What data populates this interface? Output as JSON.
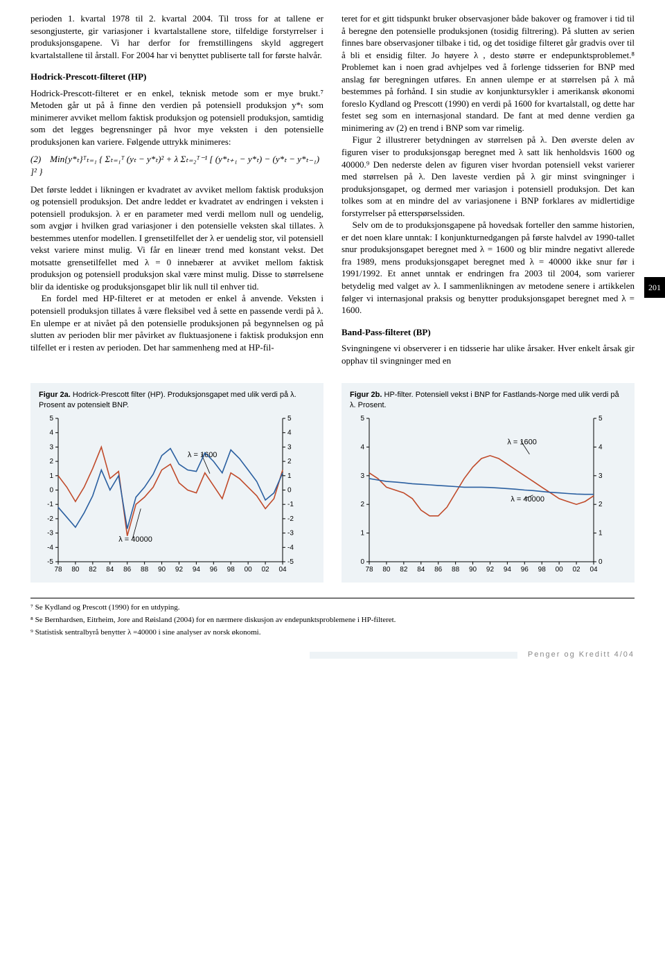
{
  "left": {
    "p1": "perioden 1. kvartal 1978 til 2. kvartal 2004. Til tross for at tallene er sesongjusterte, gir variasjoner i kvartalstallene store, tilfeldige forstyrrelser i produksjonsgapene. Vi har derfor for fremstillingens skyld aggregert kvartalstallene til årstall. For 2004 har vi benyttet publiserte tall for første halvår.",
    "h_hp": "Hodrick-Prescott-filteret (HP)",
    "p2": "Hodrick-Prescott-filteret er en enkel, teknisk metode som er mye brukt.⁷ Metoden går ut på å finne den verdien på potensiell produksjon y*ₜ som minimerer avviket mellom faktisk produksjon og potensiell produksjon, samtidig som det legges begrensninger på hvor mye veksten i den potensielle produksjonen kan variere. Følgende uttrykk minimeres:",
    "eq_label": "(2)",
    "eq_body": "Min{y*ₜ}ᵀₜ₌₁ { Σₜ₌₁ᵀ (yₜ − y*ₜ)² + λ Σₜ₌₂ᵀ⁻¹ [ (y*ₜ₊₁ − y*ₜ) − (y*ₜ − y*ₜ₋₁) ]² }",
    "p3": "Det første leddet i likningen er kvadratet av avviket mellom faktisk produksjon og potensiell produksjon. Det andre leddet er kvadratet av endringen i veksten i potensiell produksjon. λ er en parameter med verdi mellom null og uendelig, som avgjør i hvilken grad variasjoner i den potensielle veksten skal tillates. λ bestemmes utenfor modellen. I grensetilfellet der λ er uendelig stor, vil potensiell vekst variere minst mulig. Vi får en lineær trend med konstant vekst. Det motsatte grensetilfellet med λ = 0 innebærer at avviket mellom faktisk produksjon og potensiell produksjon skal være minst mulig. Disse to størrelsene blir da identiske og produksjonsgapet blir lik null til enhver tid.",
    "p4": "En fordel med HP-filteret er at metoden er enkel å anvende. Veksten i potensiell produksjon tillates å være fleksibel ved å sette en passende verdi på λ. En ulempe er at nivået på den potensielle produksjonen på begynnelsen og på slutten av perioden blir mer påvirket av fluktuasjonene i faktisk produksjon enn tilfellet er i resten av perioden. Det har sammenheng med at HP-fil-"
  },
  "right": {
    "p1": "teret for et gitt tidspunkt bruker observasjoner både bakover og framover i tid til å beregne den potensielle produksjonen (tosidig filtrering). På slutten av serien finnes bare observasjoner tilbake i tid, og det tosidige filteret går gradvis over til å bli et ensidig filter. Jo høyere λ , desto større er endepunktsproblemet.⁸ Problemet kan i noen grad avhjelpes ved å forlenge tidsserien for BNP med anslag før beregningen utføres. En annen ulempe er at størrelsen på λ må bestemmes på forhånd. I sin studie av konjunktursykler i amerikansk økonomi foreslo Kydland og Prescott (1990) en verdi på 1600 for kvartalstall, og dette har festet seg som en internasjonal standard. De fant at med denne verdien ga minimering av (2) en trend i BNP som var rimelig.",
    "p2": "Figur 2 illustrerer betydningen av størrelsen på λ. Den øverste delen av figuren viser to produksjonsgap beregnet med λ satt lik henholdsvis 1600 og 40000.⁹ Den nederste delen av figuren viser hvordan potensiell vekst varierer med størrelsen på λ. Den laveste verdien på λ gir minst svingninger i produksjonsgapet, og dermed mer variasjon i potensiell produksjon. Det kan tolkes som at en mindre del av variasjonene i BNP forklares av midlertidige forstyrrelser på etterspørselssiden.",
    "p3": "Selv om de to produksjonsgapene på hovedsak forteller den samme historien, er det noen klare unntak: I konjunkturnedgangen på første halvdel av 1990-tallet snur produksjonsgapet beregnet med λ = 1600 og blir mindre negativt allerede fra 1989, mens produksjonsgapet beregnet med λ = 40000 ikke snur før i 1991/1992. Et annet unntak er endringen fra 2003 til 2004, som varierer betydelig med valget av λ. I sammenlikningen av metodene senere i artikkelen følger vi internasjonal praksis og benytter produksjonsgapet beregnet med λ = 1600.",
    "h_bp": "Band-Pass-filteret (BP)",
    "p4": "Svingningene vi observerer i en tidsserie har ulike årsaker. Hver enkelt årsak gir opphav til svingninger med en"
  },
  "page_number": "201",
  "fig2a": {
    "caption_bold": "Figur 2a.",
    "caption_rest": " Hodrick-Prescott filter (HP). Produksjonsgapet med ulik verdi på λ. Prosent av potensielt BNP.",
    "type": "line",
    "xlabels": [
      "78",
      "80",
      "82",
      "84",
      "86",
      "88",
      "90",
      "92",
      "94",
      "96",
      "98",
      "00",
      "02",
      "04"
    ],
    "ylim": [
      -5,
      5
    ],
    "ytick_step": 1,
    "background_color": "#eef3f6",
    "axis_color": "#000000",
    "grid": false,
    "series": [
      {
        "name": "λ = 1600",
        "color": "#c04a2a",
        "width": 1.6,
        "label_xy": [
          7.5,
          2.3
        ],
        "values": [
          1.0,
          0.2,
          -0.8,
          0.2,
          1.5,
          3.0,
          0.8,
          1.3,
          -3.2,
          -1.0,
          -0.5,
          0.2,
          1.4,
          1.8,
          0.5,
          0.0,
          -0.2,
          1.2,
          0.3,
          -0.6,
          1.2,
          0.8,
          0.2,
          -0.4,
          -1.3,
          -0.6,
          1.4
        ]
      },
      {
        "name": "λ = 40000",
        "color": "#2a5fa0",
        "width": 1.6,
        "label_xy": [
          3.5,
          -3.6
        ],
        "values": [
          -1.2,
          -1.9,
          -2.6,
          -1.6,
          -0.4,
          1.4,
          0.0,
          1.0,
          -2.7,
          -0.5,
          0.2,
          1.1,
          2.4,
          2.9,
          1.8,
          1.4,
          1.3,
          2.6,
          2.0,
          1.2,
          2.8,
          2.2,
          1.4,
          0.6,
          -0.7,
          -0.2,
          1.2
        ]
      }
    ]
  },
  "fig2b": {
    "caption_bold": "Figur 2b.",
    "caption_rest": " HP-filter. Potensiell vekst i BNP for Fastlands-Norge med ulik verdi på λ. Prosent.",
    "type": "line",
    "xlabels": [
      "78",
      "80",
      "82",
      "84",
      "86",
      "88",
      "90",
      "92",
      "94",
      "96",
      "98",
      "00",
      "02",
      "04"
    ],
    "ylim": [
      0,
      5
    ],
    "ytick_step": 1,
    "background_color": "#eef3f6",
    "axis_color": "#000000",
    "grid": false,
    "series": [
      {
        "name": "λ = 1600",
        "color": "#c04a2a",
        "width": 1.6,
        "label_xy": [
          8.0,
          4.1
        ],
        "values": [
          3.1,
          2.9,
          2.6,
          2.5,
          2.4,
          2.2,
          1.8,
          1.6,
          1.6,
          1.9,
          2.4,
          2.9,
          3.3,
          3.6,
          3.7,
          3.6,
          3.4,
          3.2,
          3.0,
          2.8,
          2.6,
          2.4,
          2.2,
          2.1,
          2.0,
          2.1,
          2.3
        ]
      },
      {
        "name": "λ = 40000",
        "color": "#2a5fa0",
        "width": 1.6,
        "label_xy": [
          8.2,
          2.1
        ],
        "values": [
          2.9,
          2.85,
          2.8,
          2.78,
          2.75,
          2.72,
          2.7,
          2.68,
          2.66,
          2.64,
          2.62,
          2.6,
          2.6,
          2.6,
          2.59,
          2.57,
          2.55,
          2.53,
          2.5,
          2.48,
          2.45,
          2.42,
          2.4,
          2.38,
          2.36,
          2.35,
          2.35
        ]
      }
    ]
  },
  "footnotes": {
    "f7": "⁷ Se Kydland og Prescott (1990) for en utdyping.",
    "f8": "⁸ Se Bernhardsen, Eitrheim, Jore and Røisland (2004) for en nærmere diskusjon av endepunktsproblemene i HP-filteret.",
    "f9": "⁹ Statistisk sentralbyrå benytter λ =40000 i sine analyser av norsk økonomi."
  },
  "footer": "Penger og Kreditt 4/04"
}
